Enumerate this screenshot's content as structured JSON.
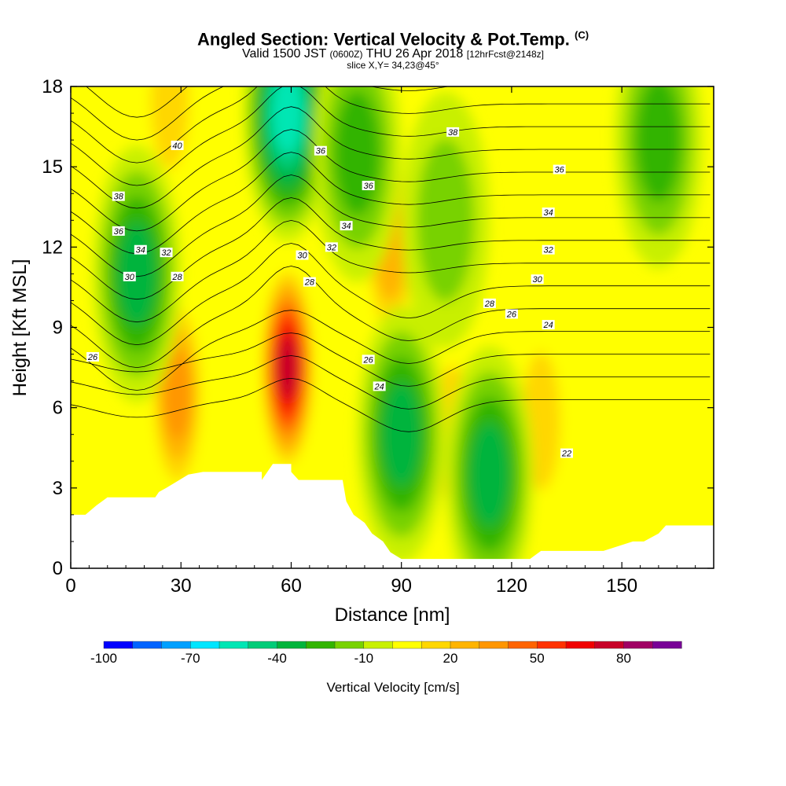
{
  "title": {
    "main": "Angled Section: Vertical Velocity & Pot.Temp.",
    "copyright": "(C)",
    "valid_prefix": "Valid 1500 JST",
    "valid_utc": "(0600Z)",
    "valid_date": "THU 26 Apr 2018",
    "forecast": "[12hrFcst@2148z]",
    "slice": "slice X,Y= 34,23@45°"
  },
  "chart_data": {
    "type": "heatmap",
    "xlabel": "Distance [nm]",
    "ylabel": "Height [Kft MSL]",
    "xlim": [
      0,
      175
    ],
    "ylim": [
      0,
      18
    ],
    "xticks": [
      0,
      30,
      60,
      90,
      120,
      150
    ],
    "yticks": [
      0,
      3,
      6,
      9,
      12,
      15,
      18
    ],
    "colorbar": {
      "label": "Vertical Velocity [cm/s]",
      "ticks": [
        "-100",
        "-70",
        "-40",
        "-10",
        "20",
        "50",
        "80"
      ],
      "levels": [
        -100,
        -90,
        -80,
        -70,
        -60,
        -50,
        -40,
        -30,
        -20,
        -10,
        0,
        10,
        20,
        30,
        40,
        50,
        60,
        70,
        80,
        90
      ],
      "colors": [
        "#0000ff",
        "#0064ff",
        "#00a0ff",
        "#00e6ff",
        "#00e6b4",
        "#00cc78",
        "#00b43c",
        "#32b400",
        "#78d200",
        "#c8f000",
        "#ffff00",
        "#ffd700",
        "#ffb400",
        "#ff9600",
        "#ff6400",
        "#ff3200",
        "#f00000",
        "#c80028",
        "#a00064",
        "#780096"
      ]
    },
    "velocity_features": [
      {
        "kind": "updraft",
        "x": 59,
        "y": 7.5,
        "peak": 80
      },
      {
        "kind": "updraft",
        "x": 29,
        "y": 6.5,
        "peak": 40
      },
      {
        "kind": "updraft",
        "x": 87,
        "y": 12.0,
        "peak": 30
      },
      {
        "kind": "updraft",
        "x": 128,
        "y": 5.5,
        "peak": 20
      },
      {
        "kind": "updraft",
        "x": 104,
        "y": 5.0,
        "peak": 15
      },
      {
        "kind": "updraft",
        "x": 27,
        "y": 17.5,
        "peak": 20
      },
      {
        "kind": "downdraft",
        "x": 59,
        "y": 17.0,
        "peak": -60
      },
      {
        "kind": "downdraft",
        "x": 18,
        "y": 11.0,
        "peak": -40
      },
      {
        "kind": "downdraft",
        "x": 90,
        "y": 5.0,
        "peak": -40
      },
      {
        "kind": "downdraft",
        "x": 114,
        "y": 3.5,
        "peak": -40
      },
      {
        "kind": "downdraft",
        "x": 78,
        "y": 15.5,
        "peak": -30
      },
      {
        "kind": "downdraft",
        "x": 160,
        "y": 16.0,
        "peak": -30
      },
      {
        "kind": "downdraft",
        "x": 102,
        "y": 13.0,
        "peak": -20
      }
    ],
    "terrain_profile": {
      "x": [
        0,
        4,
        7,
        10,
        23,
        24,
        26,
        29,
        32,
        36,
        52,
        52,
        55,
        58,
        60,
        60,
        62,
        64,
        74,
        75,
        77,
        80,
        82,
        85,
        87,
        90,
        125,
        128,
        145,
        153,
        156,
        160,
        162,
        175
      ],
      "y": [
        2.0,
        2.0,
        2.35,
        2.65,
        2.65,
        2.85,
        3.0,
        3.25,
        3.5,
        3.6,
        3.6,
        3.3,
        3.9,
        3.9,
        3.9,
        3.6,
        3.3,
        3.3,
        3.3,
        2.5,
        2.0,
        1.7,
        1.3,
        1.0,
        0.6,
        0.35,
        0.35,
        0.65,
        0.65,
        1.0,
        1.0,
        1.3,
        1.6,
        1.6
      ]
    },
    "theta_contour_labels": [
      {
        "text": "40",
        "x": 29,
        "y": 15.8
      },
      {
        "text": "38",
        "x": 13,
        "y": 13.9
      },
      {
        "text": "36",
        "x": 13,
        "y": 12.6
      },
      {
        "text": "34",
        "x": 19,
        "y": 11.9
      },
      {
        "text": "32",
        "x": 26,
        "y": 11.8
      },
      {
        "text": "30",
        "x": 16,
        "y": 10.9
      },
      {
        "text": "28",
        "x": 29,
        "y": 10.9
      },
      {
        "text": "26",
        "x": 6,
        "y": 7.9
      },
      {
        "text": "36",
        "x": 68,
        "y": 15.6
      },
      {
        "text": "36",
        "x": 81,
        "y": 14.3
      },
      {
        "text": "34",
        "x": 75,
        "y": 12.8
      },
      {
        "text": "30",
        "x": 63,
        "y": 11.7
      },
      {
        "text": "32",
        "x": 71,
        "y": 12.0
      },
      {
        "text": "28",
        "x": 65,
        "y": 10.7
      },
      {
        "text": "26",
        "x": 81,
        "y": 7.8
      },
      {
        "text": "24",
        "x": 84,
        "y": 6.8
      },
      {
        "text": "38",
        "x": 104,
        "y": 16.3
      },
      {
        "text": "36",
        "x": 133,
        "y": 14.9
      },
      {
        "text": "34",
        "x": 130,
        "y": 13.3
      },
      {
        "text": "32",
        "x": 130,
        "y": 11.9
      },
      {
        "text": "30",
        "x": 127,
        "y": 10.8
      },
      {
        "text": "28",
        "x": 114,
        "y": 9.9
      },
      {
        "text": "26",
        "x": 120,
        "y": 9.5
      },
      {
        "text": "24",
        "x": 130,
        "y": 9.1
      },
      {
        "text": "22",
        "x": 135,
        "y": 4.3
      }
    ]
  }
}
